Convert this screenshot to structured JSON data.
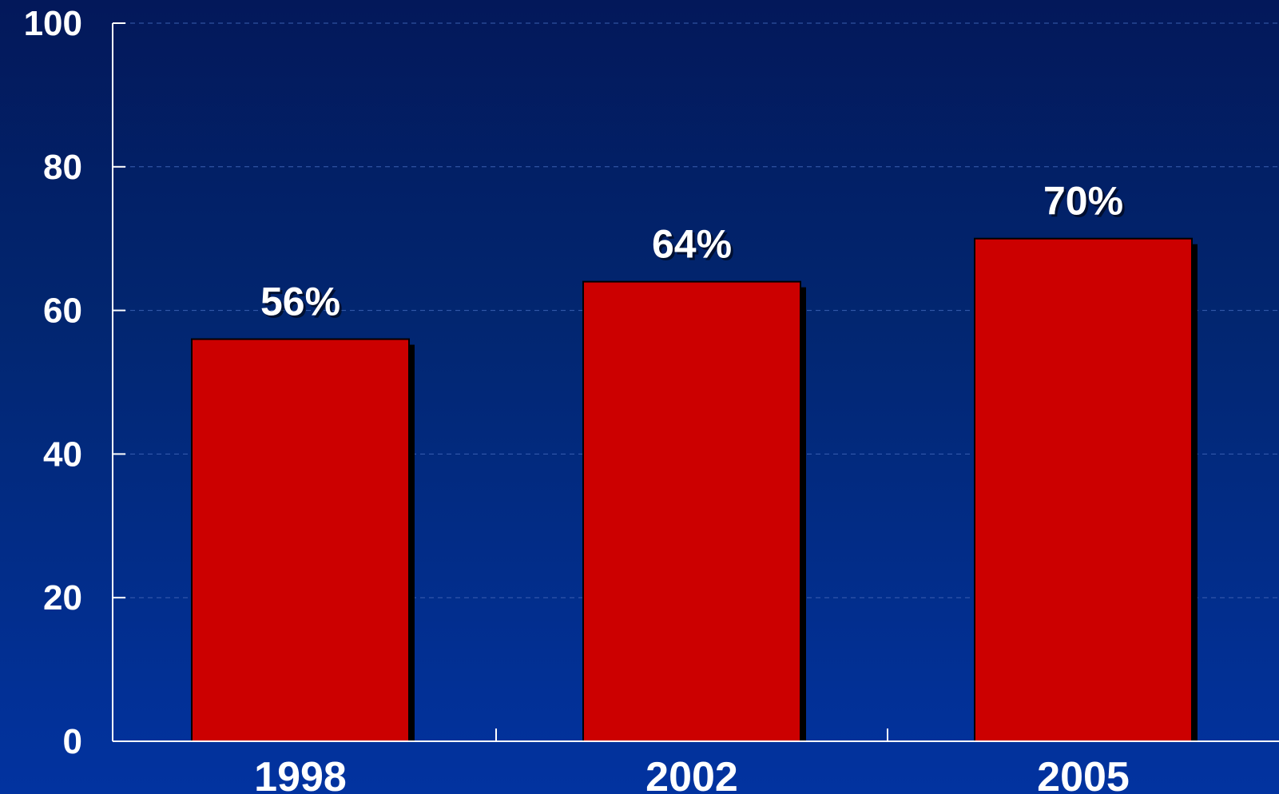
{
  "chart_data": {
    "type": "bar",
    "categories": [
      "1998",
      "2002",
      "2005"
    ],
    "values": [
      56,
      64,
      70
    ],
    "data_labels": [
      "56%",
      "64%",
      "70%"
    ],
    "title": "",
    "xlabel": "",
    "ylabel": "",
    "ylim": [
      0,
      100
    ],
    "yticks": [
      0,
      20,
      40,
      60,
      80,
      100
    ],
    "grid": true,
    "legend": "none",
    "colors": {
      "bar": "#cc0000",
      "bar_outline": "#000000",
      "bar_shadow": "#000000",
      "axis": "#ffffff",
      "grid": "#3a5fb0",
      "text": "#ffffff",
      "background_top": "#03185a",
      "background_bottom": "#0233a0"
    }
  }
}
